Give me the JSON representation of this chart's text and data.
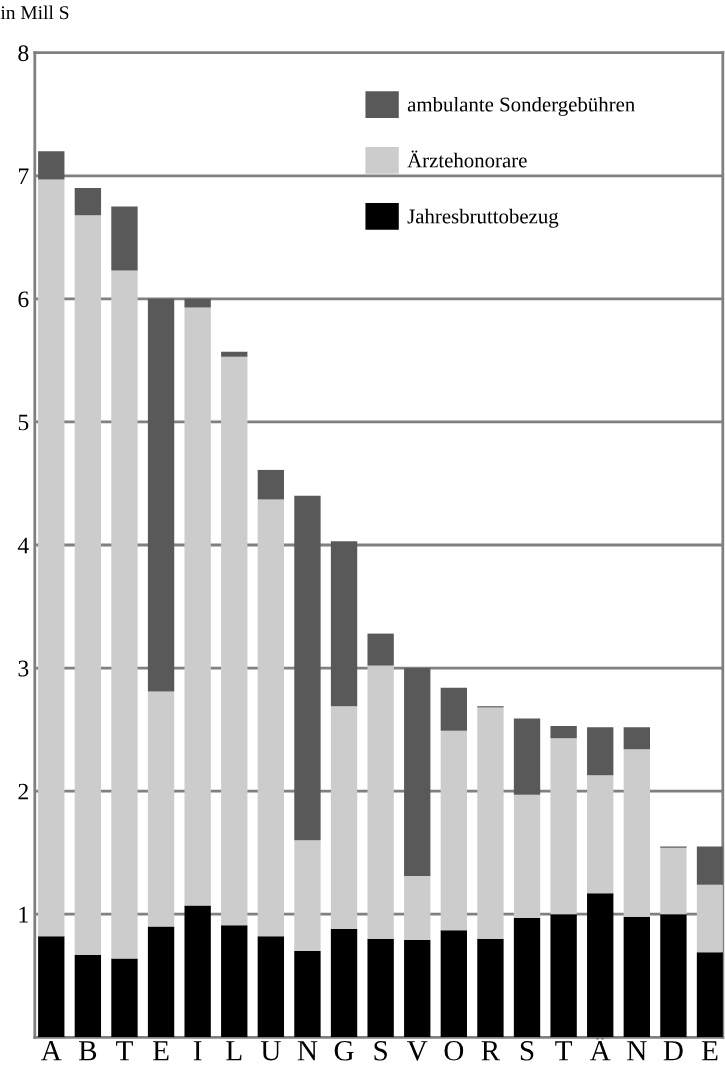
{
  "chart_data": {
    "type": "bar",
    "stacked": true,
    "ylabel": "in Mill S",
    "categories": [
      "A",
      "B",
      "T",
      "E",
      "I",
      "L",
      "U",
      "N",
      "G",
      "S",
      "V",
      "O",
      "R",
      "S",
      "T",
      "Ä",
      "N",
      "D",
      "E"
    ],
    "series": [
      {
        "name": "Jahresbruttobezug",
        "color": "#000000",
        "values": [
          0.82,
          0.67,
          0.64,
          0.9,
          1.07,
          0.91,
          0.82,
          0.7,
          0.88,
          0.8,
          0.79,
          0.87,
          0.8,
          0.97,
          1.0,
          1.17,
          0.98,
          1.0,
          0.69
        ]
      },
      {
        "name": "Ärztehonorare",
        "color": "#cccccc",
        "values": [
          6.15,
          6.01,
          5.59,
          1.91,
          4.86,
          4.62,
          3.55,
          0.9,
          1.81,
          2.22,
          0.52,
          1.62,
          1.88,
          1.0,
          1.43,
          0.96,
          1.36,
          0.54,
          0.55
        ]
      },
      {
        "name": "ambulante Sondergebühren",
        "color": "#595959",
        "values": [
          0.23,
          0.22,
          0.52,
          3.19,
          0.07,
          0.04,
          0.24,
          2.8,
          1.34,
          0.26,
          1.69,
          0.35,
          0.01,
          0.62,
          0.1,
          0.39,
          0.18,
          0.01,
          0.31
        ]
      }
    ],
    "ylim": [
      0,
      8
    ],
    "yticks": [
      1,
      2,
      3,
      4,
      5,
      6,
      7,
      8
    ],
    "grid": "y",
    "legend": "top right"
  }
}
